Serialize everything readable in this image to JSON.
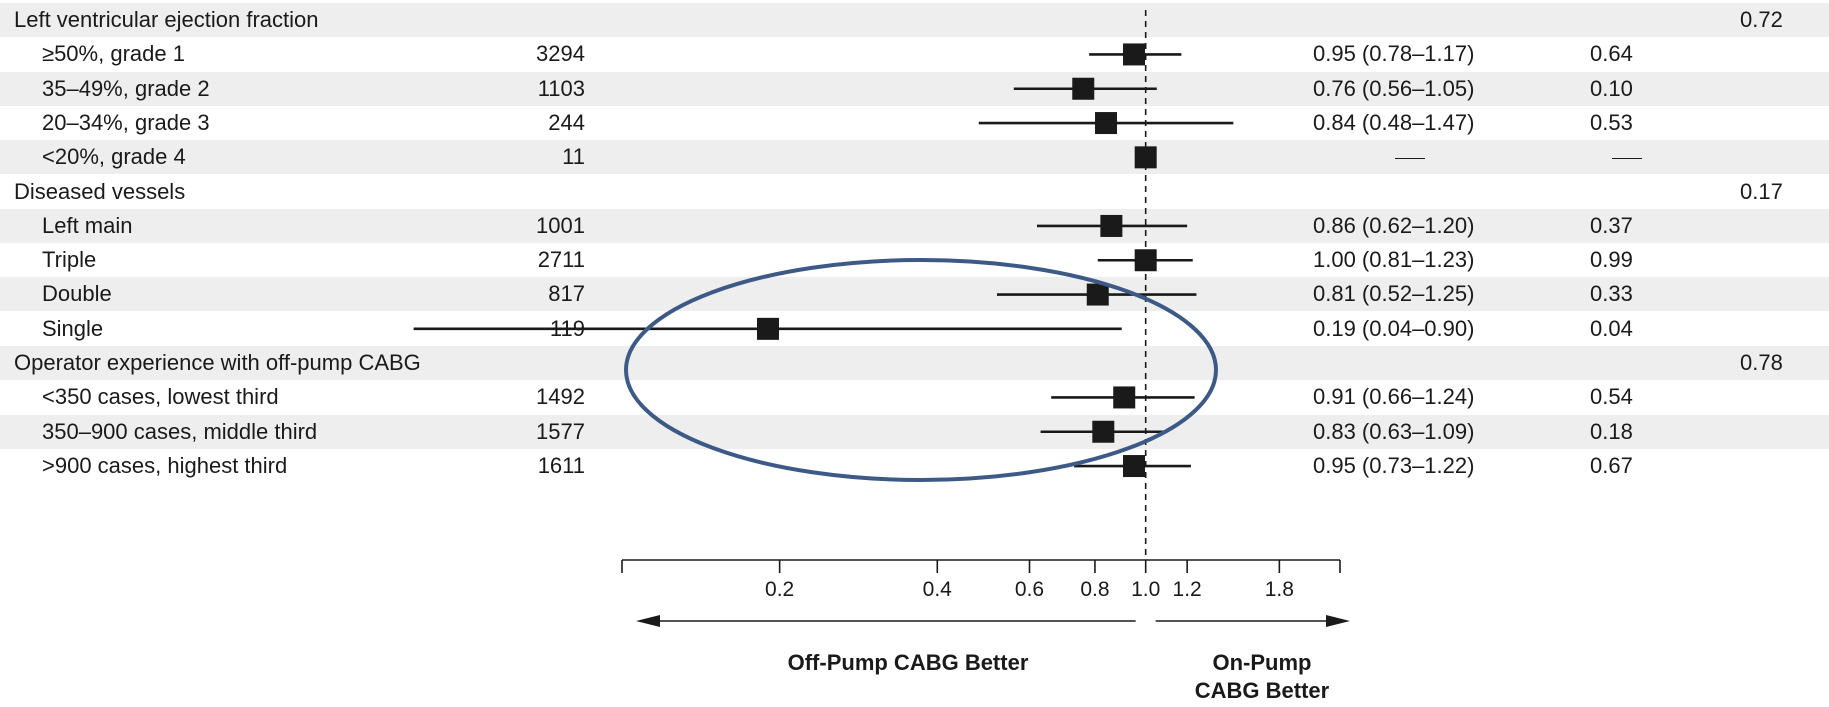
{
  "chart_data": {
    "type": "forest",
    "scale": "log",
    "xlim": [
      0.1,
      2.35
    ],
    "null_value": 1.0,
    "ticks": [
      "0.2",
      "0.4",
      "0.6",
      "0.8",
      "1.0",
      "1.2",
      "1.8"
    ],
    "tick_values": [
      0.2,
      0.4,
      0.6,
      0.8,
      1.0,
      1.2,
      1.8
    ],
    "favor_left": "Off-Pump CABG Better",
    "favor_right": "On-Pump CABG Better",
    "annotations": [
      {
        "shape": "ellipse",
        "color": "#3d5a87",
        "encloses": [
          "Triple",
          "Double",
          "Single",
          "<350 cases, lowest third"
        ]
      }
    ],
    "rows": [
      {
        "label": "Left ventricular ejection fraction",
        "header": true,
        "p_interaction": "0.72"
      },
      {
        "label": "≥50%, grade 1",
        "n": "3294",
        "est": 0.95,
        "lo": 0.78,
        "hi": 1.17,
        "hr_text": "0.95 (0.78–1.17)",
        "p": "0.64"
      },
      {
        "label": "35–49%, grade 2",
        "n": "1103",
        "est": 0.76,
        "lo": 0.56,
        "hi": 1.05,
        "hr_text": "0.76 (0.56–1.05)",
        "p": "0.10"
      },
      {
        "label": "20–34%, grade 3",
        "n": "244",
        "est": 0.84,
        "lo": 0.48,
        "hi": 1.47,
        "hr_text": "0.84 (0.48–1.47)",
        "p": "0.53"
      },
      {
        "label": "<20%, grade 4",
        "n": "11",
        "est": 1.0,
        "hr_text": "",
        "p": "",
        "dash": true
      },
      {
        "label": "Diseased vessels",
        "header": true,
        "p_interaction": "0.17"
      },
      {
        "label": "Left main",
        "n": "1001",
        "est": 0.86,
        "lo": 0.62,
        "hi": 1.2,
        "hr_text": "0.86 (0.62–1.20)",
        "p": "0.37"
      },
      {
        "label": "Triple",
        "n": "2711",
        "est": 1.0,
        "lo": 0.81,
        "hi": 1.23,
        "hr_text": "1.00 (0.81–1.23)",
        "p": "0.99"
      },
      {
        "label": "Double",
        "n": "817",
        "est": 0.81,
        "lo": 0.52,
        "hi": 1.25,
        "hr_text": "0.81 (0.52–1.25)",
        "p": "0.33"
      },
      {
        "label": "Single",
        "n": "119",
        "est": 0.19,
        "lo": 0.04,
        "hi": 0.9,
        "hr_text": "0.19 (0.04–0.90)",
        "p": "0.04"
      },
      {
        "label": "Operator experience with off-pump CABG",
        "header": true,
        "p_interaction": "0.78"
      },
      {
        "label": "<350 cases, lowest third",
        "n": "1492",
        "est": 0.91,
        "lo": 0.66,
        "hi": 1.24,
        "hr_text": "0.91 (0.66–1.24)",
        "p": "0.54"
      },
      {
        "label": "350–900 cases, middle third",
        "n": "1577",
        "est": 0.83,
        "lo": 0.63,
        "hi": 1.09,
        "hr_text": "0.83 (0.63–1.09)",
        "p": "0.18"
      },
      {
        "label": ">900 cases, highest third",
        "n": "1611",
        "est": 0.95,
        "lo": 0.73,
        "hi": 1.22,
        "hr_text": "0.95 (0.73–1.22)",
        "p": "0.67"
      }
    ]
  }
}
